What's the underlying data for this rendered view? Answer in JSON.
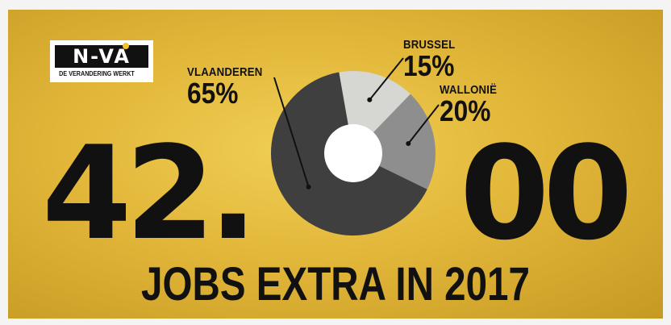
{
  "logo": {
    "mark": "N-VA",
    "tagline": "DE VERANDERING WERKT"
  },
  "headline": {
    "left": "42.",
    "right": "00"
  },
  "subtitle": "JOBS EXTRA IN 2017",
  "colors": {
    "background": "#e2b73a",
    "text": "#111111",
    "vlaanderen": "#3f3f3f",
    "wallonie": "#8e8e8e",
    "brussel": "#d6d6d2",
    "hole": "#ffffff"
  },
  "chart_data": {
    "type": "pie",
    "categories": [
      "VLAANDEREN",
      "BRUSSEL",
      "WALLONIË"
    ],
    "values": [
      65,
      15,
      20
    ],
    "labels": [
      "65%",
      "15%",
      "20%"
    ],
    "donut": true
  }
}
